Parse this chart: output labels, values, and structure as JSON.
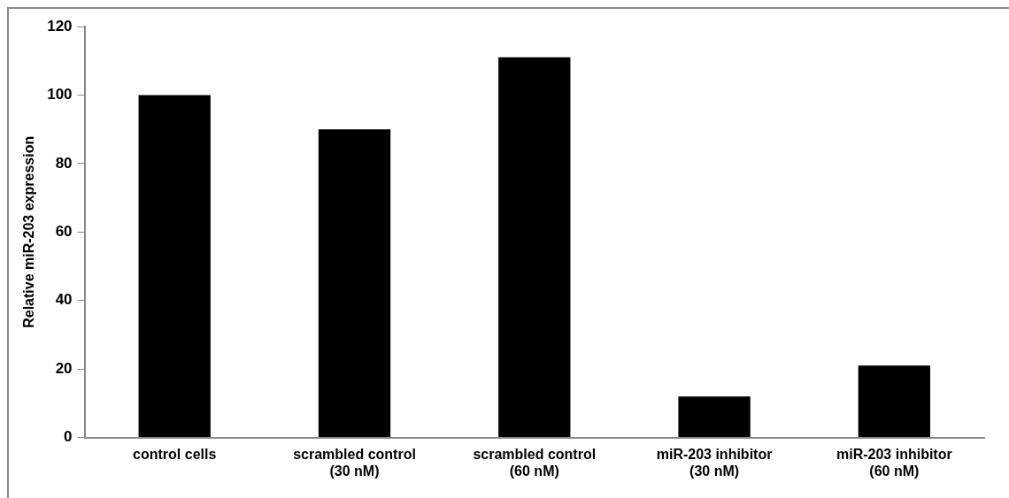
{
  "chart_data": {
    "type": "bar",
    "ylabel": "Relative miR-203 expression",
    "categories": [
      "control cells",
      "scrambled control (30 nM)",
      "scrambled control (60 nM)",
      "miR-203 inhibitor (30 nM)",
      "miR-203 inhibitor (60 nM)"
    ],
    "values": [
      100,
      90,
      111,
      12,
      21
    ],
    "color": "#000000",
    "ylim": [
      0,
      120
    ],
    "yticks": [
      0,
      20,
      40,
      60,
      80,
      100,
      120
    ],
    "grid": false,
    "legend": false
  }
}
